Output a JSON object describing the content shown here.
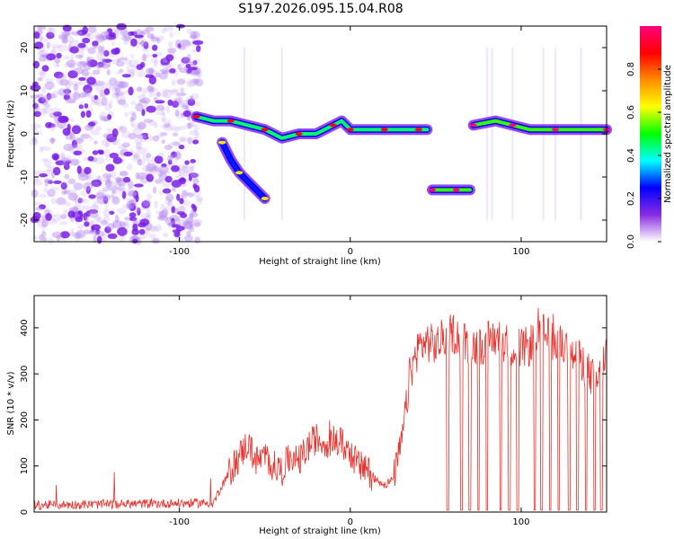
{
  "figure_title": "S197.2026.095.15.04.R08",
  "colors": {
    "snr_line": "#e8322e",
    "noise_purple": "#7a1fe6",
    "axis": "#000000"
  },
  "chart_data": [
    {
      "type": "heatmap",
      "title": "S197.2026.095.15.04.R08",
      "xlabel": "Height of straight line (km)",
      "ylabel": "Frequency (Hz)",
      "xlim": [
        -185,
        150
      ],
      "ylim": [
        -25,
        25
      ],
      "xticks": [
        -100,
        0,
        100
      ],
      "yticks": [
        -20,
        -10,
        0,
        10,
        20
      ],
      "colorbar": {
        "label": "Normalized spectral amplitude",
        "range": [
          0,
          1
        ],
        "ticks": [
          0.0,
          0.2,
          0.4,
          0.6,
          0.8
        ],
        "tick_labels": [
          "0.0",
          "0.2",
          "0.4",
          "0.6",
          "0.8"
        ],
        "colormap": [
          "#ffffff",
          "#8a2be2",
          "#0000ff",
          "#00ffff",
          "#00ff00",
          "#ffff00",
          "#ff8c00",
          "#ff0000",
          "#ff007f"
        ]
      },
      "features": [
        {
          "name": "noise",
          "x_range": [
            -185,
            -88
          ],
          "freq_range": [
            -25,
            25
          ],
          "amplitude": 0.15
        },
        {
          "name": "track-drift",
          "points": [
            [
              -90,
              4
            ],
            [
              -80,
              3
            ],
            [
              -70,
              3
            ],
            [
              -60,
              2
            ],
            [
              -50,
              1
            ],
            [
              -40,
              -1
            ],
            [
              -30,
              0
            ],
            [
              -20,
              0
            ],
            [
              -10,
              2
            ],
            [
              -5,
              3
            ],
            [
              0,
              1
            ],
            [
              10,
              1
            ],
            [
              20,
              1
            ],
            [
              30,
              1
            ],
            [
              40,
              1
            ],
            [
              45,
              1
            ]
          ],
          "amplitude": 0.6
        },
        {
          "name": "track-branch",
          "points": [
            [
              -75,
              -2
            ],
            [
              -70,
              -6
            ],
            [
              -65,
              -9
            ],
            [
              -60,
              -11
            ],
            [
              -50,
              -15
            ]
          ],
          "amplitude": 0.35
        },
        {
          "name": "track-dip",
          "points": [
            [
              48,
              -13
            ],
            [
              55,
              -13
            ],
            [
              62,
              -13
            ],
            [
              70,
              -13
            ]
          ],
          "amplitude": 0.7
        },
        {
          "name": "track-tail",
          "points": [
            [
              72,
              2
            ],
            [
              85,
              3
            ],
            [
              95,
              2
            ],
            [
              105,
              1
            ],
            [
              120,
              1
            ],
            [
              135,
              1
            ],
            [
              150,
              1
            ]
          ],
          "amplitude": 0.7
        }
      ]
    },
    {
      "type": "line",
      "xlabel": "Height of straight line (km)",
      "ylabel": "SNR (10 * v/v)",
      "xlim": [
        -185,
        150
      ],
      "ylim": [
        0,
        470
      ],
      "xticks": [
        -100,
        0,
        100
      ],
      "yticks": [
        0,
        100,
        200,
        300,
        400
      ],
      "series": [
        {
          "name": "SNR",
          "x": [
            -185,
            -80,
            -75,
            -70,
            -65,
            -60,
            -55,
            -50,
            -45,
            -40,
            -35,
            -30,
            -25,
            -20,
            -15,
            -10,
            -5,
            0,
            5,
            10,
            15,
            20,
            25,
            30,
            32,
            35,
            40,
            45,
            50,
            55,
            60,
            65,
            70,
            75,
            80,
            85,
            90,
            95,
            100,
            105,
            110,
            115,
            120,
            125,
            130,
            135,
            140,
            145,
            150
          ],
          "values": [
            15,
            20,
            60,
            90,
            120,
            150,
            110,
            120,
            100,
            90,
            120,
            110,
            140,
            160,
            150,
            155,
            150,
            130,
            100,
            90,
            70,
            60,
            70,
            150,
            210,
            300,
            360,
            370,
            360,
            380,
            390,
            375,
            360,
            360,
            370,
            380,
            370,
            360,
            355,
            360,
            400,
            380,
            370,
            360,
            340,
            330,
            300,
            280,
            350
          ]
        }
      ],
      "dropouts": [
        57,
        65,
        70,
        75,
        80,
        88,
        93,
        98,
        108,
        112,
        117,
        122,
        128,
        133,
        138,
        143,
        147
      ]
    }
  ]
}
